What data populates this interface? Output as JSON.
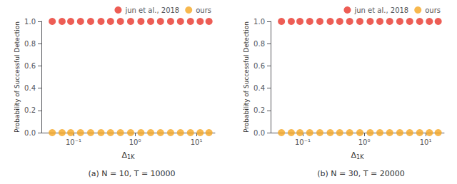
{
  "chart_data": [
    {
      "type": "scatter",
      "title": "(a) N = 10, T = 10000",
      "x": [
        0.045,
        0.065,
        0.09,
        0.13,
        0.19,
        0.28,
        0.4,
        0.58,
        0.85,
        1.25,
        1.8,
        2.6,
        3.8,
        5.5,
        8.0,
        11.5,
        16.0
      ],
      "series": [
        {
          "name": "jun et al., 2018",
          "color": "#e8352a",
          "marker": "circle",
          "values": [
            1.0,
            1.0,
            1.0,
            1.0,
            1.0,
            1.0,
            1.0,
            1.0,
            1.0,
            1.0,
            1.0,
            1.0,
            1.0,
            1.0,
            1.0,
            1.0,
            1.0
          ]
        },
        {
          "name": "ours",
          "color": "#f5a623",
          "marker": "circle",
          "values": [
            0.0,
            0.0,
            0.0,
            0.0,
            0.0,
            0.0,
            0.0,
            0.0,
            0.0,
            0.0,
            0.0,
            0.0,
            0.0,
            0.0,
            0.0,
            0.0,
            0.0
          ]
        }
      ],
      "xlabel": "Δ1K",
      "ylabel": "Probability of Successful Detection",
      "log": "x",
      "xlim": [
        0.03,
        20.0
      ],
      "ylim": [
        0.0,
        1.0
      ],
      "xticks": [
        {
          "value": 0.1,
          "label": "10⁻¹"
        },
        {
          "value": 1.0,
          "label": "10⁰"
        },
        {
          "value": 10.0,
          "label": "10¹"
        }
      ],
      "yticks": [
        {
          "value": 0.0,
          "label": "0.0"
        },
        0.2,
        0.4,
        0.6,
        0.8,
        {
          "value": 1.0,
          "label": "1.0"
        }
      ],
      "grid": false,
      "legend": "upper right"
    },
    {
      "type": "scatter",
      "title": "(b) N = 30, T = 20000",
      "x": [
        0.045,
        0.065,
        0.09,
        0.13,
        0.19,
        0.28,
        0.4,
        0.58,
        0.85,
        1.25,
        1.8,
        2.6,
        3.8,
        5.5,
        8.0,
        11.5,
        16.0
      ],
      "series": [
        {
          "name": "jun et al., 2018",
          "color": "#e8352a",
          "marker": "circle",
          "values": [
            1.0,
            1.0,
            1.0,
            1.0,
            1.0,
            1.0,
            1.0,
            1.0,
            1.0,
            1.0,
            1.0,
            1.0,
            1.0,
            1.0,
            1.0,
            1.0,
            1.0
          ]
        },
        {
          "name": "ours",
          "color": "#f5a623",
          "marker": "circle",
          "values": [
            0.0,
            0.0,
            0.0,
            0.0,
            0.0,
            0.0,
            0.0,
            0.0,
            0.0,
            0.0,
            0.0,
            0.0,
            0.0,
            0.0,
            0.0,
            0.0,
            0.0
          ]
        }
      ],
      "xlabel": "Δ1K",
      "ylabel": "Probability of Successful Detection",
      "log": "x",
      "xlim": [
        0.03,
        20.0
      ],
      "ylim": [
        0.0,
        1.0
      ],
      "xticks": [
        {
          "value": 0.1,
          "label": "10⁻¹"
        },
        {
          "value": 1.0,
          "label": "10⁰"
        },
        {
          "value": 10.0,
          "label": "10¹"
        }
      ],
      "yticks": [
        {
          "value": 0.0,
          "label": "0.0"
        },
        0.2,
        0.4,
        0.6,
        0.8,
        {
          "value": 1.0,
          "label": "1.0"
        }
      ],
      "grid": false,
      "legend": "upper right"
    }
  ]
}
